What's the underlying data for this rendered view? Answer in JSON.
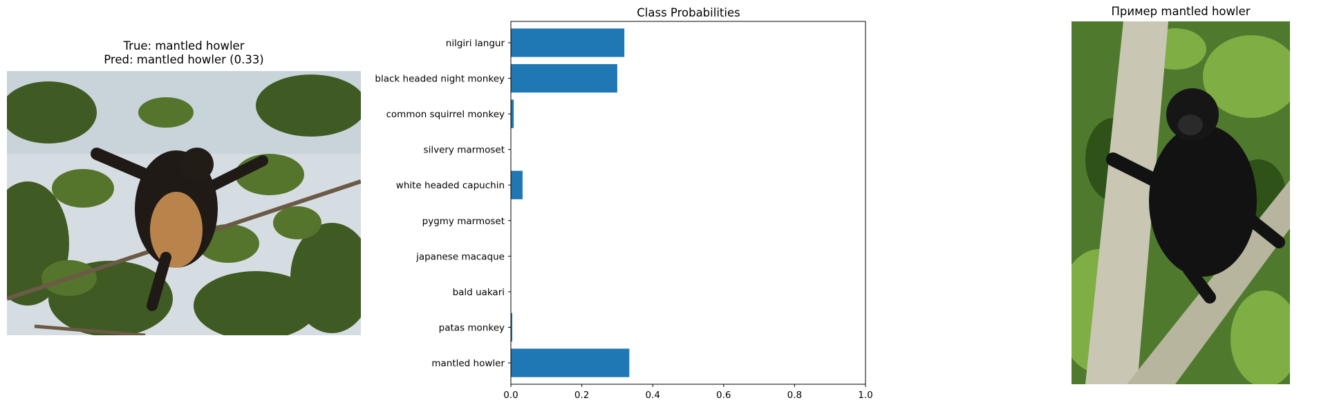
{
  "left_panel": {
    "title_line1": "True: mantled howler",
    "title_line2": "Pred: mantled howler (0.33)"
  },
  "right_panel": {
    "title": "Пример mantled howler"
  },
  "chart_data": {
    "type": "bar",
    "orientation": "horizontal",
    "title": "Class Probabilities",
    "xlabel": "",
    "ylabel": "",
    "xlim": [
      0,
      1
    ],
    "xticks": [
      "0.0",
      "0.2",
      "0.4",
      "0.6",
      "0.8",
      "1.0"
    ],
    "categories": [
      "nilgiri langur",
      "black headed night monkey",
      "common squirrel monkey",
      "silvery marmoset",
      "white headed capuchin",
      "pygmy marmoset",
      "japanese macaque",
      "bald uakari",
      "patas monkey",
      "mantled howler"
    ],
    "values": [
      0.32,
      0.3,
      0.008,
      0.0,
      0.033,
      0.0,
      0.0,
      0.0,
      0.004,
      0.334
    ],
    "bar_color": "#1f77b4",
    "grid": false
  }
}
